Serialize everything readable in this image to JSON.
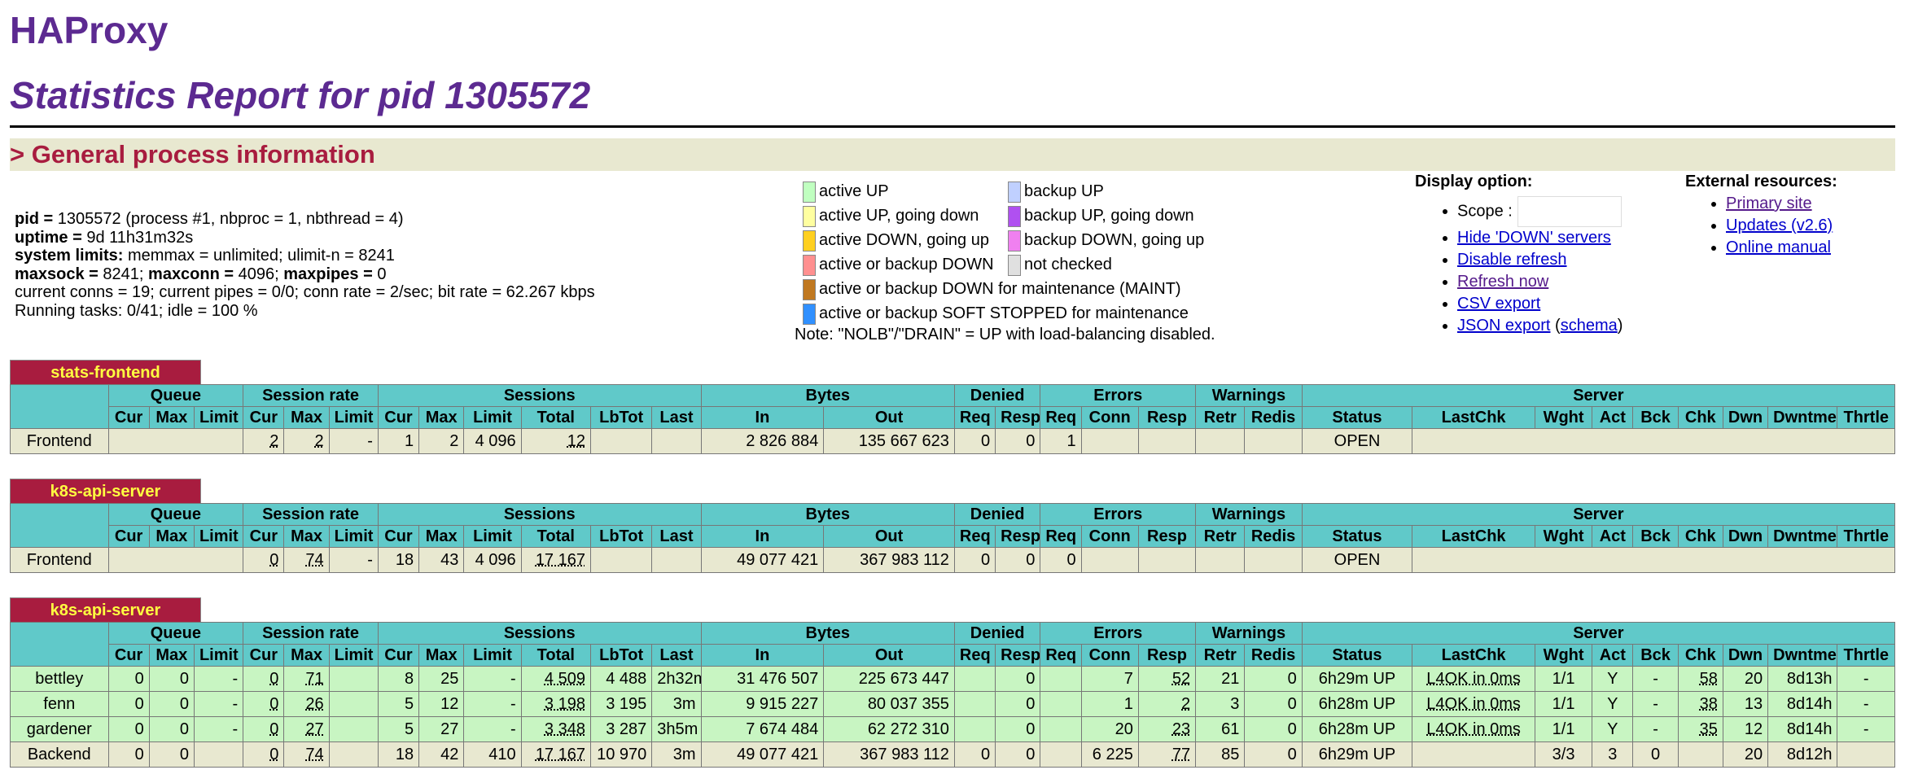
{
  "title": "HAProxy",
  "subtitle": "Statistics Report for pid 1305572",
  "section": "> General process information",
  "process_info": [
    {
      "label": "pid = ",
      "text": "1305572 (process #1, nbproc = 1, nbthread = 4)"
    },
    {
      "label": "uptime = ",
      "text": "9d 11h31m32s"
    },
    {
      "label": "system limits: ",
      "text": "memmax = unlimited; ulimit-n = 8241"
    },
    {
      "label": "maxsock = ",
      "text": "8241; ",
      "label2": "maxconn = ",
      "text2": "4096; ",
      "label3": "maxpipes = ",
      "text3": "0"
    },
    {
      "label": "",
      "text": "current conns = 19; current pipes = 0/0; conn rate = 2/sec; bit rate = 62.267 kbps"
    },
    {
      "label": "",
      "text": "Running tasks: 0/41; idle = 100 %"
    }
  ],
  "legend": [
    {
      "label": "active UP",
      "color": "#c0ffc0"
    },
    {
      "label": "active UP, going down",
      "color": "#ffffa0"
    },
    {
      "label": "active DOWN, going up",
      "color": "#ffd020"
    },
    {
      "label": "active or backup DOWN",
      "color": "#ff9090"
    },
    {
      "label": "active or backup DOWN for maintenance (MAINT)",
      "color": "#c07820"
    },
    {
      "label": "active or backup SOFT STOPPED for maintenance",
      "color": "#3090ff"
    },
    {
      "label": "backup UP",
      "color": "#c0d0ff"
    },
    {
      "label": "backup UP, going down",
      "color": "#b050f0"
    },
    {
      "label": "backup DOWN, going up",
      "color": "#f080f0"
    },
    {
      "label": "not checked",
      "color": "#e0e0e0"
    }
  ],
  "legend_note": "Note: \"NOLB\"/\"DRAIN\" = UP with load-balancing disabled.",
  "display": {
    "title": "Display option:",
    "scope_label": "Scope :",
    "links": [
      "Hide 'DOWN' servers",
      "Disable refresh",
      "Refresh now",
      "CSV export"
    ],
    "json_label": "JSON export",
    "schema_label": "schema"
  },
  "external": {
    "title": "External resources:",
    "links": [
      "Primary site",
      "Updates (v2.6)",
      "Online manual"
    ]
  },
  "headers": {
    "groups": [
      "Queue",
      "Session rate",
      "Sessions",
      "Bytes",
      "Denied",
      "Errors",
      "Warnings",
      "Server"
    ],
    "queue": [
      "Cur",
      "Max",
      "Limit"
    ],
    "rate": [
      "Cur",
      "Max",
      "Limit"
    ],
    "sessions": [
      "Cur",
      "Max",
      "Limit",
      "Total",
      "LbTot",
      "Last"
    ],
    "bytes": [
      "In",
      "Out"
    ],
    "denied": [
      "Req",
      "Resp"
    ],
    "errors": [
      "Req",
      "Conn",
      "Resp"
    ],
    "warnings": [
      "Retr",
      "Redis"
    ],
    "server": [
      "Status",
      "LastChk",
      "Wght",
      "Act",
      "Bck",
      "Chk",
      "Dwn",
      "Dwntme",
      "Thrtle"
    ]
  },
  "proxies": [
    {
      "name": "stats-frontend",
      "rows": [
        {
          "cls": "fe",
          "cells": [
            "Frontend",
            "",
            "",
            "",
            "2",
            "2",
            "-",
            "1",
            "2",
            "4 096",
            "12",
            "",
            "",
            "2 826 884",
            "135 667 623",
            "0",
            "0",
            "1",
            "",
            "",
            "",
            "",
            "OPEN",
            "",
            "",
            "",
            "",
            "",
            "",
            "",
            ""
          ]
        }
      ]
    },
    {
      "name": "k8s-api-server",
      "rows": [
        {
          "cls": "fe",
          "cells": [
            "Frontend",
            "",
            "",
            "",
            "0",
            "74",
            "-",
            "18",
            "43",
            "4 096",
            "17 167",
            "",
            "",
            "49 077 421",
            "367 983 112",
            "0",
            "0",
            "0",
            "",
            "",
            "",
            "",
            "OPEN",
            "",
            "",
            "",
            "",
            "",
            "",
            "",
            ""
          ]
        }
      ]
    },
    {
      "name": "k8s-api-server",
      "rows": [
        {
          "cls": "up",
          "cells": [
            "bettley",
            "0",
            "0",
            "-",
            "0",
            "71",
            "",
            "8",
            "25",
            "-",
            "4 509",
            "4 488",
            "2h32m",
            "31 476 507",
            "225 673 447",
            "",
            "0",
            "",
            "7",
            "52",
            "21",
            "0",
            "6h29m UP",
            "L4OK in 0ms",
            "1/1",
            "Y",
            "-",
            "58",
            "20",
            "8d13h",
            "-"
          ]
        },
        {
          "cls": "up",
          "cells": [
            "fenn",
            "0",
            "0",
            "-",
            "0",
            "26",
            "",
            "5",
            "12",
            "-",
            "3 198",
            "3 195",
            "3m",
            "9 915 227",
            "80 037 355",
            "",
            "0",
            "",
            "1",
            "2",
            "3",
            "0",
            "6h28m UP",
            "L4OK in 0ms",
            "1/1",
            "Y",
            "-",
            "38",
            "13",
            "8d14h",
            "-"
          ]
        },
        {
          "cls": "up",
          "cells": [
            "gardener",
            "0",
            "0",
            "-",
            "0",
            "27",
            "",
            "5",
            "27",
            "-",
            "3 348",
            "3 287",
            "3h5m",
            "7 674 484",
            "62 272 310",
            "",
            "0",
            "",
            "20",
            "23",
            "61",
            "0",
            "6h28m UP",
            "L4OK in 0ms",
            "1/1",
            "Y",
            "-",
            "35",
            "12",
            "8d14h",
            "-"
          ]
        },
        {
          "cls": "bk",
          "cells": [
            "Backend",
            "0",
            "0",
            "",
            "0",
            "74",
            "",
            "18",
            "42",
            "410",
            "17 167",
            "10 970",
            "3m",
            "49 077 421",
            "367 983 112",
            "0",
            "0",
            "",
            "6 225",
            "77",
            "85",
            "0",
            "6h29m UP",
            "",
            "3/3",
            "3",
            "0",
            "",
            "20",
            "8d12h",
            ""
          ]
        }
      ]
    }
  ]
}
